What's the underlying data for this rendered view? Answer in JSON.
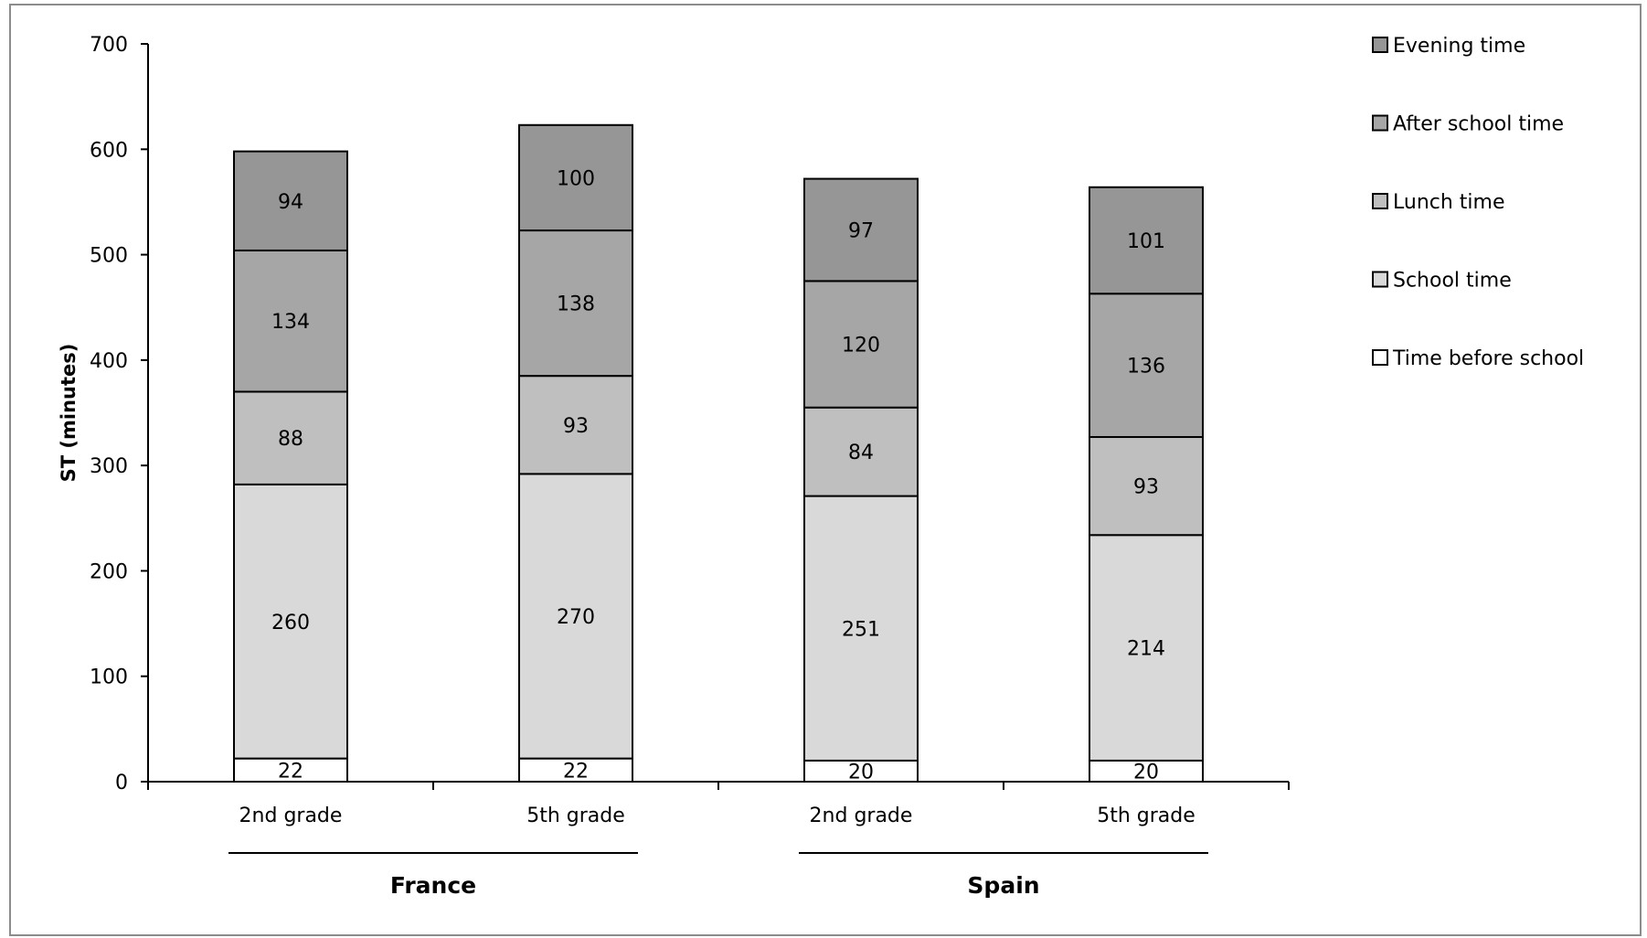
{
  "chart_data": {
    "type": "bar",
    "stacked": true,
    "ylabel": "ST (minutes)",
    "ylim": [
      0,
      700
    ],
    "yticks": [
      0,
      100,
      200,
      300,
      400,
      500,
      600,
      700
    ],
    "groups": [
      {
        "label": "France",
        "categories": [
          "2nd grade",
          "5th grade"
        ]
      },
      {
        "label": "Spain",
        "categories": [
          "2nd grade",
          "5th grade"
        ]
      }
    ],
    "categories": [
      "2nd grade",
      "5th grade",
      "2nd grade",
      "5th grade"
    ],
    "series": [
      {
        "name": "Time before school",
        "color": "#ffffff",
        "values": [
          22,
          22,
          20,
          20
        ]
      },
      {
        "name": "School time",
        "color": "#d9d9d9",
        "values": [
          260,
          270,
          251,
          214
        ]
      },
      {
        "name": "Lunch time",
        "color": "#bfbfbf",
        "values": [
          88,
          93,
          84,
          93
        ]
      },
      {
        "name": "After school time",
        "color": "#a6a6a6",
        "values": [
          134,
          138,
          120,
          136
        ]
      },
      {
        "name": "Evening time",
        "color": "#969696",
        "values": [
          94,
          100,
          97,
          101
        ]
      }
    ],
    "legend_position": "top-right",
    "legend_order": [
      "Evening time",
      "After school time",
      "Lunch time",
      "School time",
      "Time before school"
    ],
    "grid": false
  }
}
